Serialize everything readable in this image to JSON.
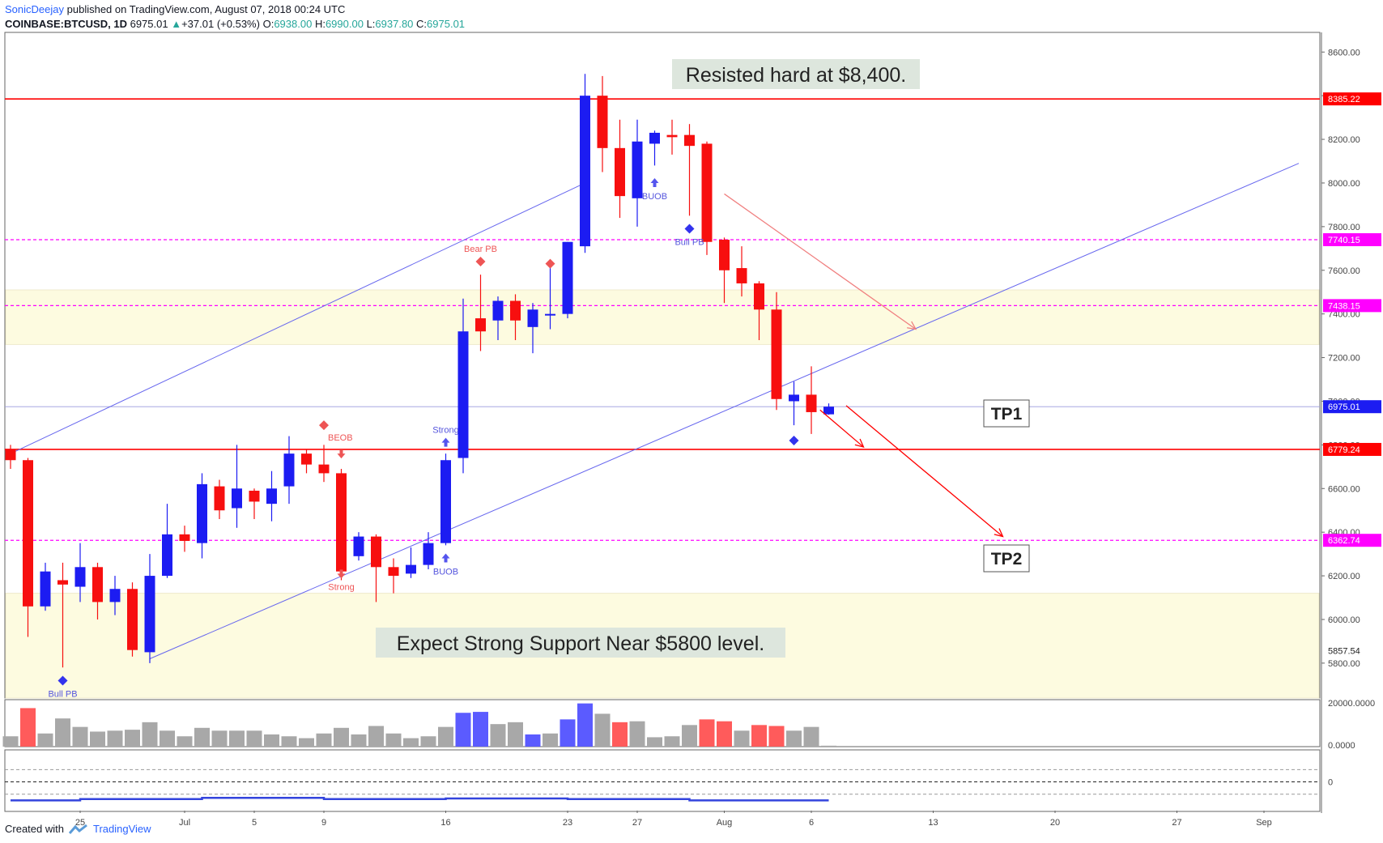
{
  "header": {
    "author": "SonicDeejay",
    "published_text": "published on TradingView.com, August 07, 2018 00:24 UTC",
    "symbol": "COINBASE:BTCUSD, 1D",
    "last": "6975.01",
    "change": "+37.01 (+0.53%)",
    "o_label": "O:",
    "o_val": "6938.00",
    "h_label": "H:",
    "h_val": "6990.00",
    "l_label": "L:",
    "l_val": "6937.80",
    "c_label": "C:",
    "c_val": "6975.01"
  },
  "footer": {
    "created_with": "Created with",
    "brand": "TradingView"
  },
  "colors": {
    "bull": "#1c1cf2",
    "bear": "#f70f0f",
    "vol_gray": "#a8a8a8",
    "vol_bull": "#5b5bff",
    "vol_bear": "#ff5b5b",
    "zone": "#fdfbe0",
    "magenta": "#ff00ff",
    "red_line": "#ff0000",
    "channel": "#6666ee"
  },
  "annotations": {
    "resisted": "Resisted hard at $8,400.",
    "support": "Expect Strong Support Near $5800 level.",
    "tp1": "TP1",
    "tp2": "TP2"
  },
  "chart_data": {
    "type": "candlestick",
    "ylim": [
      5640,
      8690
    ],
    "y_ticks": [
      8600,
      8400,
      8200,
      8000,
      7800,
      7600,
      7400,
      7200,
      7000,
      6800,
      6600,
      6400,
      6200,
      6000,
      5800
    ],
    "y_tick_labels": [
      "8600.00",
      "8400.00",
      "8200.00",
      "8000.00",
      "7800.00",
      "7600.00",
      "7400.00",
      "7200.00",
      "7000.00",
      "6800.00",
      "6600.00",
      "6400.00",
      "6200.00",
      "6000.00",
      "5800.00"
    ],
    "x_ticks": [
      {
        "label": "25",
        "day": 4
      },
      {
        "label": "Jul",
        "day": 10
      },
      {
        "label": "5",
        "day": 14
      },
      {
        "label": "9",
        "day": 18
      },
      {
        "label": "16",
        "day": 25
      },
      {
        "label": "23",
        "day": 32
      },
      {
        "label": "27",
        "day": 36
      },
      {
        "label": "Aug",
        "day": 41
      },
      {
        "label": "6",
        "day": 46
      },
      {
        "label": "13",
        "day": 53
      },
      {
        "label": "20",
        "day": 60
      },
      {
        "label": "27",
        "day": 67
      },
      {
        "label": "Sep",
        "day": 72
      }
    ],
    "candles": [
      {
        "d": 0,
        "o": 6780,
        "h": 6800,
        "l": 6690,
        "c": 6730
      },
      {
        "d": 1,
        "o": 6730,
        "h": 6740,
        "l": 5920,
        "c": 6060
      },
      {
        "d": 2,
        "o": 6060,
        "h": 6260,
        "l": 6040,
        "c": 6220
      },
      {
        "d": 3,
        "o": 6180,
        "h": 6260,
        "l": 5780,
        "c": 6160
      },
      {
        "d": 4,
        "o": 6150,
        "h": 6350,
        "l": 6080,
        "c": 6240
      },
      {
        "d": 5,
        "o": 6240,
        "h": 6260,
        "l": 6000,
        "c": 6080
      },
      {
        "d": 6,
        "o": 6080,
        "h": 6200,
        "l": 6020,
        "c": 6140
      },
      {
        "d": 7,
        "o": 6140,
        "h": 6170,
        "l": 5830,
        "c": 5860
      },
      {
        "d": 8,
        "o": 5850,
        "h": 6300,
        "l": 5800,
        "c": 6200
      },
      {
        "d": 9,
        "o": 6200,
        "h": 6530,
        "l": 6190,
        "c": 6390
      },
      {
        "d": 10,
        "o": 6390,
        "h": 6430,
        "l": 6310,
        "c": 6360
      },
      {
        "d": 11,
        "o": 6350,
        "h": 6670,
        "l": 6280,
        "c": 6620
      },
      {
        "d": 12,
        "o": 6610,
        "h": 6640,
        "l": 6460,
        "c": 6500
      },
      {
        "d": 13,
        "o": 6510,
        "h": 6800,
        "l": 6420,
        "c": 6600
      },
      {
        "d": 14,
        "o": 6590,
        "h": 6600,
        "l": 6460,
        "c": 6540
      },
      {
        "d": 15,
        "o": 6530,
        "h": 6680,
        "l": 6450,
        "c": 6600
      },
      {
        "d": 16,
        "o": 6610,
        "h": 6840,
        "l": 6530,
        "c": 6760
      },
      {
        "d": 17,
        "o": 6760,
        "h": 6780,
        "l": 6670,
        "c": 6710
      },
      {
        "d": 18,
        "o": 6710,
        "h": 6800,
        "l": 6630,
        "c": 6670
      },
      {
        "d": 19,
        "o": 6670,
        "h": 6690,
        "l": 6180,
        "c": 6220
      },
      {
        "d": 20,
        "o": 6290,
        "h": 6400,
        "l": 6270,
        "c": 6380
      },
      {
        "d": 21,
        "o": 6380,
        "h": 6390,
        "l": 6080,
        "c": 6240
      },
      {
        "d": 22,
        "o": 6240,
        "h": 6280,
        "l": 6120,
        "c": 6200
      },
      {
        "d": 23,
        "o": 6210,
        "h": 6330,
        "l": 6190,
        "c": 6250
      },
      {
        "d": 24,
        "o": 6250,
        "h": 6400,
        "l": 6230,
        "c": 6350
      },
      {
        "d": 25,
        "o": 6350,
        "h": 6760,
        "l": 6340,
        "c": 6730
      },
      {
        "d": 26,
        "o": 6740,
        "h": 7470,
        "l": 6670,
        "c": 7320
      },
      {
        "d": 27,
        "o": 7380,
        "h": 7580,
        "l": 7230,
        "c": 7320
      },
      {
        "d": 28,
        "o": 7370,
        "h": 7480,
        "l": 7280,
        "c": 7460
      },
      {
        "d": 29,
        "o": 7460,
        "h": 7490,
        "l": 7280,
        "c": 7370
      },
      {
        "d": 30,
        "o": 7340,
        "h": 7450,
        "l": 7220,
        "c": 7420
      },
      {
        "d": 31,
        "o": 7400,
        "h": 7620,
        "l": 7330,
        "c": 7400
      },
      {
        "d": 32,
        "o": 7400,
        "h": 7730,
        "l": 7380,
        "c": 7730
      },
      {
        "d": 33,
        "o": 7710,
        "h": 8500,
        "l": 7680,
        "c": 8400
      },
      {
        "d": 34,
        "o": 8400,
        "h": 8490,
        "l": 8050,
        "c": 8160
      },
      {
        "d": 35,
        "o": 8160,
        "h": 8290,
        "l": 7840,
        "c": 7940
      },
      {
        "d": 36,
        "o": 7930,
        "h": 8290,
        "l": 7800,
        "c": 8190
      },
      {
        "d": 37,
        "o": 8180,
        "h": 8240,
        "l": 8080,
        "c": 8230
      },
      {
        "d": 38,
        "o": 8220,
        "h": 8290,
        "l": 8130,
        "c": 8210
      },
      {
        "d": 39,
        "o": 8220,
        "h": 8270,
        "l": 7850,
        "c": 8170
      },
      {
        "d": 40,
        "o": 8180,
        "h": 8190,
        "l": 7670,
        "c": 7730
      },
      {
        "d": 41,
        "o": 7740,
        "h": 7750,
        "l": 7450,
        "c": 7600
      },
      {
        "d": 42,
        "o": 7610,
        "h": 7710,
        "l": 7480,
        "c": 7540
      },
      {
        "d": 43,
        "o": 7540,
        "h": 7550,
        "l": 7280,
        "c": 7420
      },
      {
        "d": 44,
        "o": 7420,
        "h": 7500,
        "l": 6960,
        "c": 7010
      },
      {
        "d": 45,
        "o": 7000,
        "h": 7090,
        "l": 6890,
        "c": 7030
      },
      {
        "d": 46,
        "o": 7030,
        "h": 7160,
        "l": 6850,
        "c": 6950
      },
      {
        "d": 47,
        "o": 6940,
        "h": 6990,
        "l": 6938,
        "c": 6975
      }
    ],
    "volume": [
      {
        "d": 0,
        "v": 0.22,
        "dir": "gray"
      },
      {
        "d": 1,
        "v": 0.82,
        "dir": "bear"
      },
      {
        "d": 2,
        "v": 0.28,
        "dir": "gray"
      },
      {
        "d": 3,
        "v": 0.6,
        "dir": "gray"
      },
      {
        "d": 4,
        "v": 0.42,
        "dir": "gray"
      },
      {
        "d": 5,
        "v": 0.32,
        "dir": "gray"
      },
      {
        "d": 6,
        "v": 0.34,
        "dir": "gray"
      },
      {
        "d": 7,
        "v": 0.36,
        "dir": "gray"
      },
      {
        "d": 8,
        "v": 0.52,
        "dir": "gray"
      },
      {
        "d": 9,
        "v": 0.34,
        "dir": "gray"
      },
      {
        "d": 10,
        "v": 0.22,
        "dir": "gray"
      },
      {
        "d": 11,
        "v": 0.4,
        "dir": "gray"
      },
      {
        "d": 12,
        "v": 0.34,
        "dir": "gray"
      },
      {
        "d": 13,
        "v": 0.34,
        "dir": "gray"
      },
      {
        "d": 14,
        "v": 0.34,
        "dir": "gray"
      },
      {
        "d": 15,
        "v": 0.26,
        "dir": "gray"
      },
      {
        "d": 16,
        "v": 0.22,
        "dir": "gray"
      },
      {
        "d": 17,
        "v": 0.18,
        "dir": "gray"
      },
      {
        "d": 18,
        "v": 0.28,
        "dir": "gray"
      },
      {
        "d": 19,
        "v": 0.4,
        "dir": "gray"
      },
      {
        "d": 20,
        "v": 0.26,
        "dir": "gray"
      },
      {
        "d": 21,
        "v": 0.44,
        "dir": "gray"
      },
      {
        "d": 22,
        "v": 0.28,
        "dir": "gray"
      },
      {
        "d": 23,
        "v": 0.18,
        "dir": "gray"
      },
      {
        "d": 24,
        "v": 0.22,
        "dir": "gray"
      },
      {
        "d": 25,
        "v": 0.42,
        "dir": "gray"
      },
      {
        "d": 26,
        "v": 0.72,
        "dir": "bull"
      },
      {
        "d": 27,
        "v": 0.74,
        "dir": "bull"
      },
      {
        "d": 28,
        "v": 0.48,
        "dir": "gray"
      },
      {
        "d": 29,
        "v": 0.52,
        "dir": "gray"
      },
      {
        "d": 30,
        "v": 0.26,
        "dir": "bull"
      },
      {
        "d": 31,
        "v": 0.28,
        "dir": "gray"
      },
      {
        "d": 32,
        "v": 0.58,
        "dir": "bull"
      },
      {
        "d": 33,
        "v": 0.92,
        "dir": "bull"
      },
      {
        "d": 34,
        "v": 0.7,
        "dir": "gray"
      },
      {
        "d": 35,
        "v": 0.52,
        "dir": "bear"
      },
      {
        "d": 36,
        "v": 0.54,
        "dir": "gray"
      },
      {
        "d": 37,
        "v": 0.2,
        "dir": "gray"
      },
      {
        "d": 38,
        "v": 0.22,
        "dir": "gray"
      },
      {
        "d": 39,
        "v": 0.46,
        "dir": "gray"
      },
      {
        "d": 40,
        "v": 0.58,
        "dir": "bear"
      },
      {
        "d": 41,
        "v": 0.54,
        "dir": "bear"
      },
      {
        "d": 42,
        "v": 0.34,
        "dir": "gray"
      },
      {
        "d": 43,
        "v": 0.46,
        "dir": "bear"
      },
      {
        "d": 44,
        "v": 0.44,
        "dir": "bear"
      },
      {
        "d": 45,
        "v": 0.34,
        "dir": "gray"
      },
      {
        "d": 46,
        "v": 0.42,
        "dir": "gray"
      },
      {
        "d": 47,
        "v": 0.02,
        "dir": "gray"
      }
    ],
    "volume_axis_labels": [
      "20000.0000",
      "0.0000"
    ],
    "osc_axis_label": "0",
    "price_labels": [
      {
        "price": 8385.22,
        "label": "8385.22",
        "color": "#ff0000"
      },
      {
        "price": 7740.15,
        "label": "7740.15",
        "color": "#ff00ff"
      },
      {
        "price": 7438.15,
        "label": "7438.15",
        "color": "#ff00ff"
      },
      {
        "price": 6975.01,
        "label": "6975.01",
        "color": "#1c1cf2"
      },
      {
        "price": 6779.24,
        "label": "6779.24",
        "color": "#ff0000"
      },
      {
        "price": 6362.74,
        "label": "6362.74",
        "color": "#ff00ff"
      },
      {
        "price": 5857.54,
        "label": "5857.54",
        "color": "plain"
      }
    ],
    "h_lines": [
      {
        "price": 8385.22,
        "style": "solid",
        "color": "#ff0000"
      },
      {
        "price": 6779.24,
        "style": "solid",
        "color": "#ff0000"
      },
      {
        "price": 7740.15,
        "style": "dashed",
        "color": "#ff00ff"
      },
      {
        "price": 7438.15,
        "style": "dashed",
        "color": "#ff00ff"
      },
      {
        "price": 6362.74,
        "style": "dashed",
        "color": "#ff00ff"
      },
      {
        "price": 6975.01,
        "style": "thin",
        "color": "#9999dd"
      }
    ],
    "zones": [
      {
        "top": 7510,
        "bottom": 7260
      },
      {
        "top": 6120,
        "bottom": 5640
      }
    ],
    "channel_lines": [
      {
        "d1": 0,
        "p1": 6760,
        "d2": 33,
        "p2": 8000
      },
      {
        "d1": 8,
        "p1": 5820,
        "d2": 74,
        "p2": 8090
      }
    ],
    "signals": [
      {
        "d": 3,
        "price": 5720,
        "shape": "diamond",
        "color": "#3333ee",
        "text": "Bull PB",
        "text_pos": "below",
        "text_color": "#5555dd"
      },
      {
        "d": 18,
        "price": 6890,
        "shape": "diamond",
        "color": "#ee5555",
        "text": "BEOB",
        "text_pos": "right",
        "text_color": "#ee5555"
      },
      {
        "d": 19,
        "price": 6760,
        "shape": "arrow-down",
        "color": "#ee5555",
        "text": "",
        "text_pos": "none",
        "text_color": "#ee5555"
      },
      {
        "d": 19,
        "price": 6210,
        "shape": "arrow-down",
        "color": "#ee5555",
        "text": "Strong",
        "text_pos": "below",
        "text_color": "#ee5555"
      },
      {
        "d": 25,
        "price": 6810,
        "shape": "arrow-up",
        "color": "#5555ee",
        "text": "Strong",
        "text_pos": "above",
        "text_color": "#5555dd"
      },
      {
        "d": 25,
        "price": 6280,
        "shape": "arrow-up",
        "color": "#5555ee",
        "text": "BUOB",
        "text_pos": "below",
        "text_color": "#5555dd"
      },
      {
        "d": 27,
        "price": 7640,
        "shape": "diamond",
        "color": "#ee5555",
        "text": "Bear PB",
        "text_pos": "above",
        "text_color": "#ee5555"
      },
      {
        "d": 31,
        "price": 7630,
        "shape": "diamond",
        "color": "#ee5555",
        "text": "",
        "text_pos": "none",
        "text_color": "#ee5555"
      },
      {
        "d": 37,
        "price": 8000,
        "shape": "arrow-up",
        "color": "#5555ee",
        "text": "BUOB",
        "text_pos": "below",
        "text_color": "#5555dd"
      },
      {
        "d": 39,
        "price": 7790,
        "shape": "diamond",
        "color": "#3333ee",
        "text": "Bull PB",
        "text_pos": "below",
        "text_color": "#5555dd"
      },
      {
        "d": 45,
        "price": 6820,
        "shape": "diamond",
        "color": "#3333ee",
        "text": "",
        "text_pos": "none",
        "text_color": "#5555dd"
      }
    ],
    "arrows": [
      {
        "d1": 41,
        "p1": 7950,
        "d2": 52,
        "p2": 7330,
        "color": "#f08080"
      },
      {
        "d1": 46.5,
        "p1": 6960,
        "d2": 49,
        "p2": 6790,
        "color": "#ff0000"
      },
      {
        "d1": 48,
        "p1": 6980,
        "d2": 57,
        "p2": 6380,
        "color": "#ff0000"
      }
    ],
    "osc_lines": [
      {
        "y": 0.32,
        "style": "dashed"
      },
      {
        "y": 0.52,
        "style": "dashed-dark"
      },
      {
        "y": 0.72,
        "style": "dashed"
      }
    ],
    "osc_series": [
      0.82,
      0.82,
      0.82,
      0.82,
      0.8,
      0.8,
      0.8,
      0.8,
      0.8,
      0.8,
      0.8,
      0.78,
      0.78,
      0.78,
      0.78,
      0.78,
      0.78,
      0.78,
      0.8,
      0.8,
      0.8,
      0.8,
      0.8,
      0.8,
      0.8,
      0.79,
      0.79,
      0.79,
      0.79,
      0.79,
      0.79,
      0.79,
      0.8,
      0.8,
      0.8,
      0.8,
      0.8,
      0.8,
      0.8,
      0.82,
      0.82,
      0.82,
      0.82,
      0.82,
      0.82,
      0.82,
      0.82
    ]
  }
}
